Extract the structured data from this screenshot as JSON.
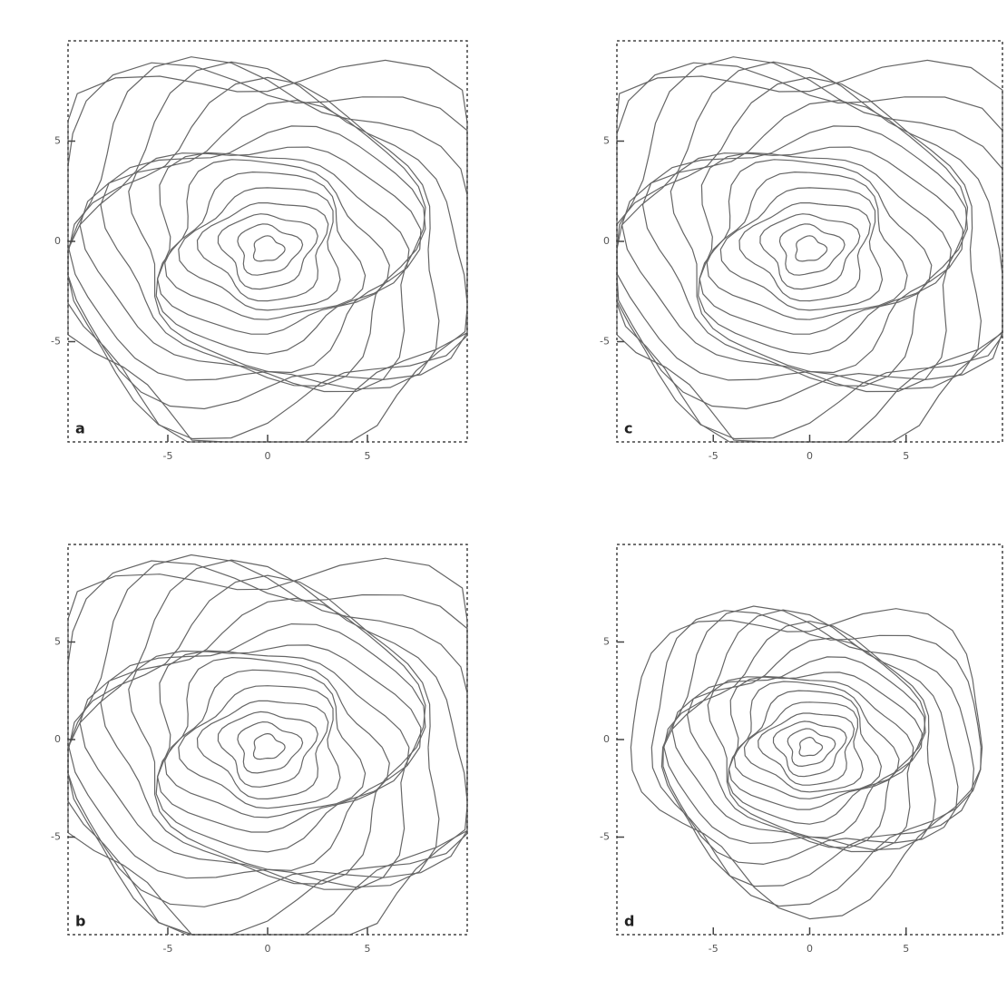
{
  "panels": [
    {
      "label": "a",
      "xlim": [
        -10,
        10
      ],
      "ylim": [
        -10,
        10
      ],
      "xticks": [
        -5,
        0,
        5
      ],
      "yticks": [
        5,
        0,
        -5
      ]
    },
    {
      "label": "c",
      "xlim": [
        -10,
        10
      ],
      "ylim": [
        -10,
        10
      ],
      "xticks": [
        -5,
        0,
        5
      ],
      "yticks": [
        5,
        0,
        -5
      ]
    },
    {
      "label": "b",
      "xlim": [
        -10,
        10
      ],
      "ylim": [
        -10,
        10
      ],
      "xticks": [
        -5,
        0,
        5
      ],
      "yticks": [
        5,
        0,
        -5
      ]
    },
    {
      "label": "d",
      "xlim": [
        -10,
        10
      ],
      "ylim": [
        -10,
        10
      ],
      "xticks": [
        -5,
        0,
        5
      ],
      "yticks": [
        5,
        0,
        -5
      ]
    }
  ]
}
